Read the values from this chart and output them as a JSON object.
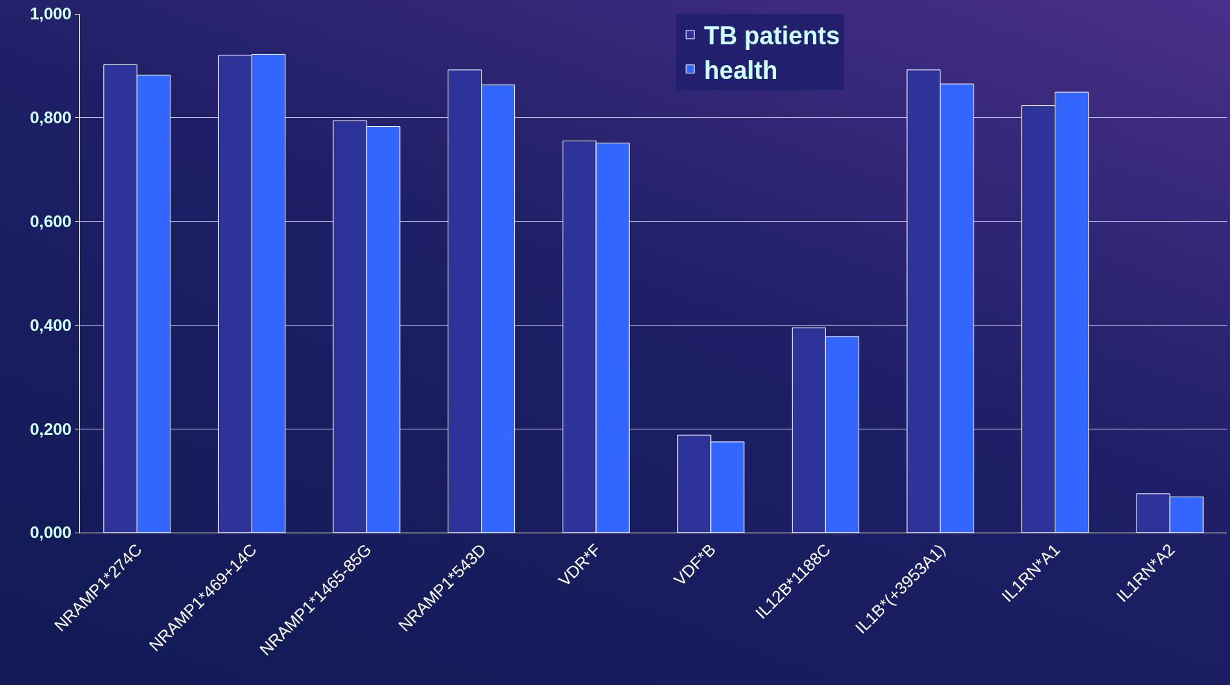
{
  "chart_data": {
    "type": "bar",
    "categories": [
      "NRAMP1*274C",
      "NRAMP1*469+14C",
      "NRAMP1*1465-85G",
      "NRAMP1*543D",
      "VDR*F",
      "VDF*B",
      "IL12B*1188C",
      "IL1B*(+3953A1)",
      "IL1RN*A1",
      "IL1RN*A2"
    ],
    "series": [
      {
        "name": "TB patients",
        "color": "#2e3399",
        "values": [
          0.902,
          0.92,
          0.794,
          0.892,
          0.755,
          0.188,
          0.395,
          0.892,
          0.823,
          0.075
        ]
      },
      {
        "name": "health",
        "color": "#3366ff",
        "values": [
          0.882,
          0.922,
          0.783,
          0.863,
          0.751,
          0.175,
          0.378,
          0.865,
          0.849,
          0.069
        ]
      }
    ],
    "ylim": [
      0,
      1
    ],
    "yticks": [
      {
        "value": 0,
        "label": "0,000"
      },
      {
        "value": 0.2,
        "label": "0,200"
      },
      {
        "value": 0.4,
        "label": "0,400"
      },
      {
        "value": 0.6,
        "label": "0,600"
      },
      {
        "value": 0.8,
        "label": "0,800"
      },
      {
        "value": 1,
        "label": "1,000"
      }
    ],
    "grid": "y",
    "legend": "top right"
  }
}
